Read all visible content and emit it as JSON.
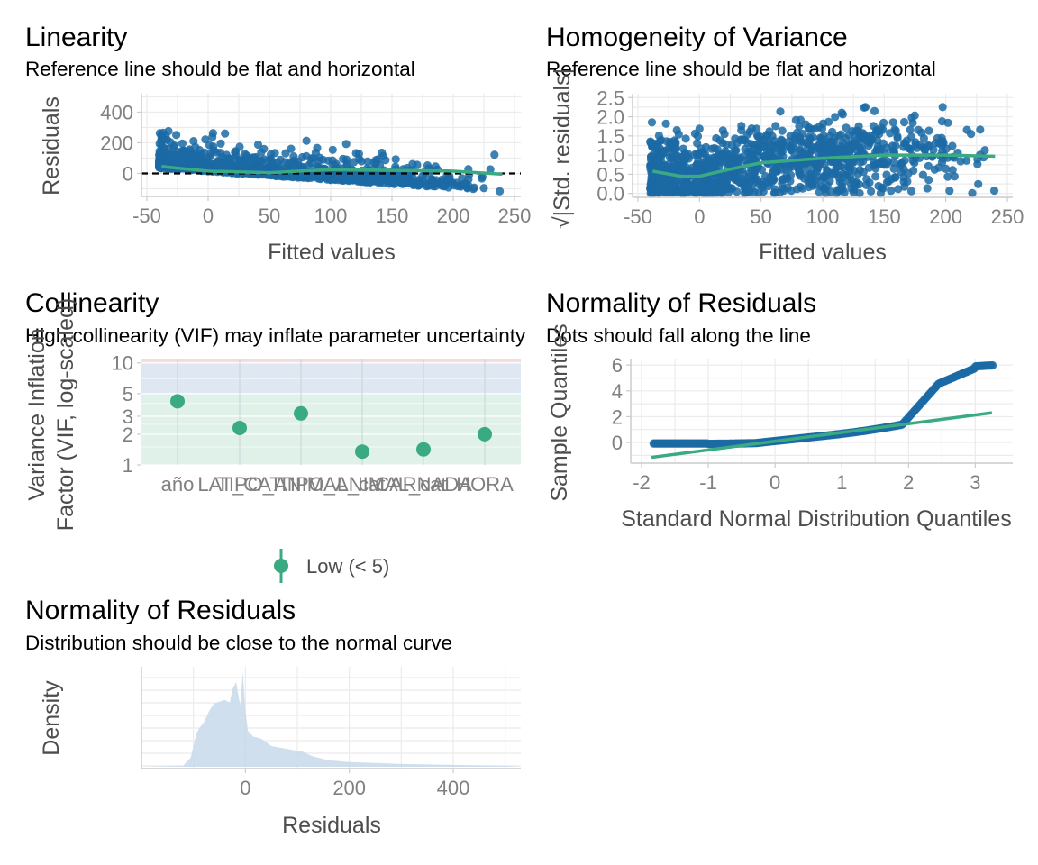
{
  "colors": {
    "points": "#1b6aa5",
    "smooth": "#3aaa83",
    "reference": "#000000",
    "grid": "#ebebeb",
    "axis_line": "#cccccc",
    "band_high": "#f4d7da",
    "band_moderate": "#dbe6f1",
    "band_low": "#dcefe6",
    "density_fill": "#c7d9ea"
  },
  "chart_data": [
    {
      "id": "linearity",
      "type": "scatter",
      "title": "Linearity",
      "subtitle": "Reference line should be flat and horizontal",
      "xlabel": "Fitted values",
      "ylabel": "Residuals",
      "xlim": [
        -50,
        250
      ],
      "ylim": [
        -150,
        520
      ],
      "xticks": [
        -50,
        0,
        50,
        100,
        150,
        200,
        250
      ],
      "xtick_labels": [
        "-50",
        "0",
        "50",
        "100",
        "150",
        "200",
        "250"
      ],
      "yticks": [
        0,
        200,
        400
      ],
      "ytick_labels": [
        "0",
        "200",
        "400"
      ],
      "reference_y": 0,
      "smooth": {
        "x": [
          -38,
          0,
          50,
          100,
          150,
          200,
          240
        ],
        "y": [
          45,
          15,
          5,
          25,
          20,
          15,
          -5
        ]
      },
      "grid": true
    },
    {
      "id": "homogeneity",
      "type": "scatter",
      "title": "Homogeneity of Variance",
      "subtitle": "Reference line should be flat and horizontal",
      "xlabel": "Fitted values",
      "ylabel": "√|Std. residuals|",
      "xlim": [
        -50,
        250
      ],
      "ylim": [
        -0.1,
        2.6
      ],
      "xticks": [
        -50,
        0,
        50,
        100,
        150,
        200,
        250
      ],
      "xtick_labels": [
        "-50",
        "0",
        "50",
        "100",
        "150",
        "200",
        "250"
      ],
      "yticks": [
        0,
        0.5,
        1,
        1.5,
        2,
        2.5
      ],
      "ytick_labels": [
        "0.0",
        "0.5",
        "1.0",
        "1.5",
        "2.0",
        "2.5"
      ],
      "smooth": {
        "x": [
          -38,
          -15,
          0,
          20,
          50,
          100,
          150,
          200,
          240
        ],
        "y": [
          0.58,
          0.45,
          0.45,
          0.6,
          0.8,
          0.92,
          1.0,
          1.0,
          0.97
        ]
      },
      "grid": true
    },
    {
      "id": "collinearity",
      "type": "scatter",
      "title": "Collinearity",
      "subtitle": "High collinearity (VIF) may inflate parameter uncertainty",
      "xlabel": "",
      "ylabel_lines": [
        "Variance Inflation",
        "Factor (VIF, log-scaled)"
      ],
      "log_scale": true,
      "ylim": [
        1,
        11
      ],
      "yticks": [
        1,
        2,
        3,
        5,
        10
      ],
      "ytick_labels": [
        "1",
        "2",
        "3",
        "5",
        "10"
      ],
      "categories": [
        "año",
        "LAT_CAT",
        "TIPO_ANIMAL_cat",
        "TIPO_ANIMAL_cat",
        "CARNADA",
        "HORA"
      ],
      "tick_labels_drawn": [
        "año",
        "LAT_CAT",
        "TIPO_ANIMAL_cat",
        "TIPO_ANIMAL_cat",
        "CARNADA",
        "HORA"
      ],
      "values": [
        4.2,
        2.3,
        3.2,
        1.35,
        1.42,
        2.0
      ],
      "bands": [
        {
          "name": "high",
          "from": 10,
          "to": 11
        },
        {
          "name": "moderate",
          "from": 5,
          "to": 10
        },
        {
          "name": "low",
          "from": 1,
          "to": 5
        }
      ],
      "legend": [
        {
          "label": "Low (< 5)",
          "color": "#3aaa83"
        }
      ],
      "legend_position": "bottom",
      "grid": true
    },
    {
      "id": "qq",
      "type": "scatter",
      "title": "Normality of Residuals",
      "subtitle": "Dots should fall along the line",
      "xlabel": "Standard Normal Distribution Quantiles",
      "ylabel": "Sample Quantiles",
      "xlim": [
        -2,
        3.4
      ],
      "ylim": [
        -1.6,
        6.5
      ],
      "xticks": [
        -2,
        -1,
        0,
        1,
        2,
        3
      ],
      "xtick_labels": [
        "-2",
        "-1",
        "0",
        "1",
        "2",
        "3"
      ],
      "yticks": [
        0,
        2,
        4,
        6
      ],
      "ytick_labels": [
        "0",
        "2",
        "4",
        "6"
      ],
      "reference_line": {
        "x": [
          -1.85,
          3.25
        ],
        "y": [
          -1.15,
          2.3
        ]
      },
      "grid": true
    },
    {
      "id": "density",
      "type": "area",
      "title": "Normality of Residuals",
      "subtitle": "Distribution should be close to the normal curve",
      "xlabel": "Residuals",
      "ylabel": "Density",
      "xlim": [
        -200,
        530
      ],
      "xticks": [
        0,
        200,
        400
      ],
      "xtick_labels": [
        "0",
        "200",
        "400"
      ],
      "x": [
        -200,
        -120,
        -105,
        -95,
        -90,
        -80,
        -70,
        -60,
        -50,
        -40,
        -30,
        -25,
        -18,
        -10,
        -5,
        0,
        5,
        15,
        30,
        50,
        70,
        90,
        110,
        130,
        160,
        200,
        250,
        300,
        400,
        500,
        530
      ],
      "y": [
        0.0,
        0.001,
        0.01,
        0.034,
        0.04,
        0.047,
        0.059,
        0.067,
        0.069,
        0.071,
        0.068,
        0.082,
        0.09,
        0.065,
        0.1,
        0.06,
        0.038,
        0.032,
        0.03,
        0.022,
        0.02,
        0.018,
        0.016,
        0.011,
        0.007,
        0.005,
        0.004,
        0.003,
        0.002,
        0.001,
        0.0
      ],
      "grid": true
    }
  ]
}
